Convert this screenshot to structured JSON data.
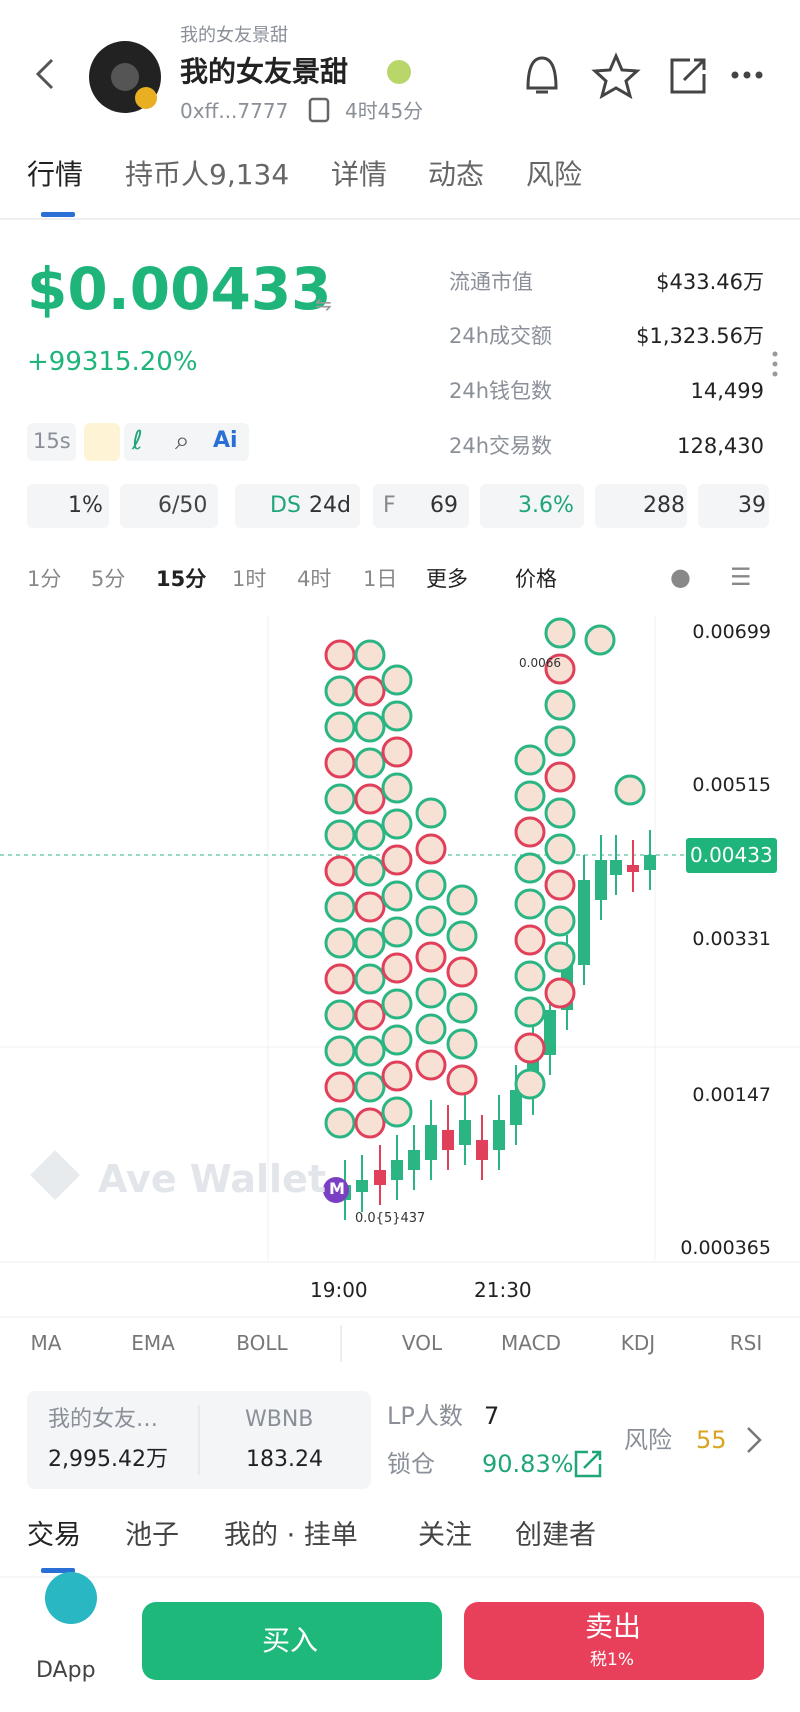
{
  "header": {
    "subtitle": "我的女友景甜",
    "title": "我的女友景甜",
    "address": "0xff...7777",
    "age": "4时45分"
  },
  "tabs": [
    "行情",
    "持币人9,134",
    "详情",
    "动态",
    "风险"
  ],
  "price": {
    "value": "$0.00433",
    "change": "+99315.20%"
  },
  "stats": [
    {
      "label": "流通市值",
      "value": "$433.46万"
    },
    {
      "label": "24h成交额",
      "value": "$1,323.56万"
    },
    {
      "label": "24h钱包数",
      "value": "14,499"
    },
    {
      "label": "24h交易数",
      "value": "128,430"
    }
  ],
  "tools": {
    "interval": "15s",
    "ai": "Ai"
  },
  "badges": [
    "1%",
    "6/50",
    "DS",
    "24d",
    "F",
    "69",
    "3.6%",
    "288",
    "39"
  ],
  "intervals": [
    "1分",
    "5分",
    "15分",
    "1时",
    "4时",
    "1日",
    "更多",
    "价格"
  ],
  "chart": {
    "price_labels": [
      "0.00699",
      "0.00515",
      "0.00331",
      "0.00147",
      "0.000365"
    ],
    "current": "0.00433",
    "annotations": [
      "0.0066",
      "0.0{5}437"
    ],
    "time_labels": [
      "19:00",
      "21:30"
    ],
    "watermark": "Ave Wallet",
    "marker": "M"
  },
  "indicators": [
    "MA",
    "EMA",
    "BOLL",
    "VOL",
    "MACD",
    "KDJ",
    "RSI"
  ],
  "pool": {
    "token": "我的女友…",
    "token_amount": "2,995.42万",
    "quote": "WBNB",
    "quote_amount": "183.24",
    "lp_label": "LP人数",
    "lp_count": 7,
    "lock_label": "锁仓",
    "lock": "90.83%",
    "risk_label": "风险",
    "risk": 55
  },
  "bottom_tabs": [
    "交易",
    "池子",
    "我的 · 挂单",
    "关注",
    "创建者"
  ],
  "footer": {
    "dapp": "DApp",
    "buy": "买入",
    "sell": "卖出",
    "tax": "税1%"
  }
}
